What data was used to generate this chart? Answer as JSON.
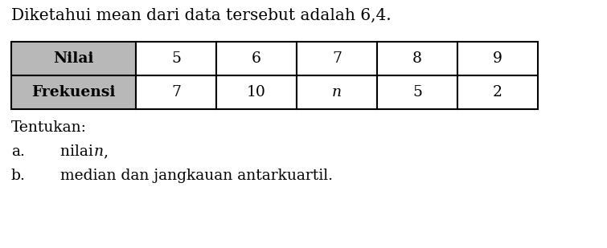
{
  "title": "Diketahui mean dari data tersebut adalah 6,4.",
  "row1_label": "Nilai",
  "row2_label": "Frekuensi",
  "row1_data": [
    "5",
    "6",
    "7",
    "8",
    "9"
  ],
  "row2_data": [
    "7",
    "10",
    "n",
    "5",
    "2"
  ],
  "header_bg": "#b8b8b8",
  "cell_bg": "#ffffff",
  "border_color": "#000000",
  "intro": "Tentukan:",
  "qa": "a.",
  "qa_text_pre": "nilai ",
  "qa_text_n": "n",
  "qa_text_post": ",",
  "qb": "b.",
  "qb_text": "median dan jangkauan antarkuartil.",
  "font_size_title": 14.5,
  "font_size_table": 13.5,
  "font_size_q": 13.5,
  "bg_color": "#ffffff",
  "fig_width": 7.55,
  "fig_height": 3.09,
  "dpi": 100
}
